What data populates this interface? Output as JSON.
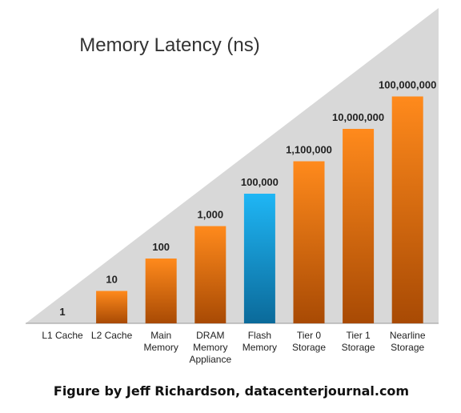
{
  "chart_data": {
    "type": "bar",
    "title": "Memory Latency (ns)",
    "categories": [
      [
        "L1 Cache"
      ],
      [
        "L2 Cache"
      ],
      [
        "Main",
        "Memory"
      ],
      [
        "DRAM",
        "Memory",
        "Appliance"
      ],
      [
        "Flash",
        "Memory"
      ],
      [
        "Tier 0",
        "Storage"
      ],
      [
        "Tier 1",
        "Storage"
      ],
      [
        "Nearline",
        "Storage"
      ]
    ],
    "values": [
      1,
      10,
      100,
      1000,
      100000,
      1100000,
      10000000,
      100000000
    ],
    "value_labels": [
      "1",
      "10",
      "100",
      "1,000",
      "100,000",
      "1,100,000",
      "10,000,000",
      "100,000,000"
    ],
    "yscale": "log",
    "grid": false,
    "legend": "none",
    "colors": {
      "bar": "#f47a0f",
      "bar_dark": "#a84a04",
      "bar_highlight": "#1fb6f5",
      "bar_highlight_dark": "#0b6a9a",
      "highlight_index": 4,
      "background_triangle": "#d8d8d8"
    }
  },
  "caption": "Figure by Jeff Richardson, datacenterjournal.com"
}
